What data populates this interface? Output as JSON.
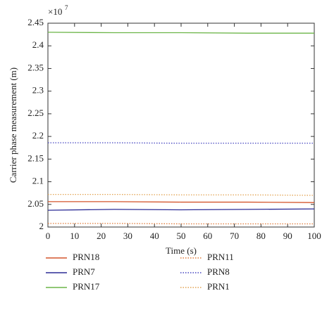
{
  "chart_data": {
    "type": "line",
    "xlabel": "Time (s)",
    "ylabel": "Carrier phase measurement (m)",
    "y_multiplier": "×10",
    "y_multiplier_exponent": "7",
    "x": [
      0,
      25,
      50,
      75,
      100
    ],
    "xlim": [
      0,
      100
    ],
    "xticks": [
      0,
      10,
      20,
      30,
      40,
      50,
      60,
      70,
      80,
      90,
      100
    ],
    "ylim": [
      2,
      2.45
    ],
    "yticks": [
      2,
      2.05,
      2.1,
      2.15,
      2.2,
      2.25,
      2.3,
      2.35,
      2.4,
      2.45
    ],
    "grid": false,
    "legend": "bottom",
    "series": [
      {
        "name": "PRN18",
        "color": "#d4552c",
        "style": "solid",
        "values": [
          2.056,
          2.056,
          2.055,
          2.055,
          2.054
        ]
      },
      {
        "name": "PRN7",
        "color": "#2b2b96",
        "style": "solid",
        "values": [
          2.037,
          2.039,
          2.038,
          2.039,
          2.04
        ]
      },
      {
        "name": "PRN17",
        "color": "#6cb548",
        "style": "solid",
        "values": [
          2.43,
          2.429,
          2.429,
          2.428,
          2.428
        ]
      },
      {
        "name": "PRN11",
        "color": "#e07a38",
        "style": "dotted",
        "values": [
          2.008,
          2.008,
          2.007,
          2.007,
          2.007
        ]
      },
      {
        "name": "PRN8",
        "color": "#4444c0",
        "style": "dotted",
        "values": [
          2.186,
          2.186,
          2.185,
          2.185,
          2.185
        ]
      },
      {
        "name": "PRN1",
        "color": "#e2a352",
        "style": "dotted",
        "values": [
          2.072,
          2.072,
          2.071,
          2.071,
          2.07
        ]
      }
    ]
  }
}
